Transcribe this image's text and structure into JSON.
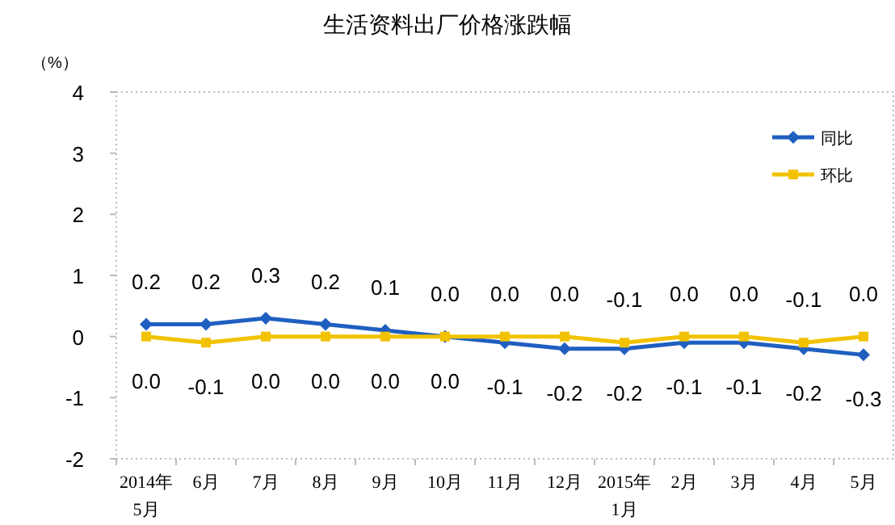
{
  "chart_data": {
    "type": "line",
    "title": "生活资料出厂价格涨跌幅",
    "ylabel": "（%）",
    "categories": [
      "2014年\n5月",
      "6月",
      "7月",
      "8月",
      "9月",
      "10月",
      "11月",
      "12月",
      "2015年\n1月",
      "2月",
      "3月",
      "4月",
      "5月"
    ],
    "series": [
      {
        "name": "同比",
        "color": "#1f5fc0",
        "marker": "diamond",
        "values": [
          0.2,
          0.2,
          0.3,
          0.2,
          0.1,
          0.0,
          -0.1,
          -0.2,
          -0.2,
          -0.1,
          -0.1,
          -0.2,
          -0.3
        ],
        "value_labels": [
          "0.2",
          "0.2",
          "0.3",
          "0.2",
          "0.1",
          "0.0",
          "-0.1",
          "-0.2",
          "-0.2",
          "-0.1",
          "-0.1",
          "-0.2",
          "-0.3"
        ]
      },
      {
        "name": "环比",
        "color": "#f2c200",
        "marker": "square",
        "values": [
          0.0,
          -0.1,
          0.0,
          0.0,
          0.0,
          0.0,
          0.0,
          0.0,
          -0.1,
          0.0,
          0.0,
          -0.1,
          0.0
        ],
        "value_labels": [
          "0.0",
          "-0.1",
          "0.0",
          "0.0",
          "0.0",
          "0.0",
          "0.0",
          "0.0",
          "-0.1",
          "0.0",
          "0.0",
          "-0.1",
          "0.0"
        ]
      }
    ],
    "ylim": [
      -2,
      4
    ],
    "yticks": [
      -2,
      -1,
      0,
      1,
      2,
      3,
      4
    ],
    "legend": "top right",
    "grid": false
  }
}
